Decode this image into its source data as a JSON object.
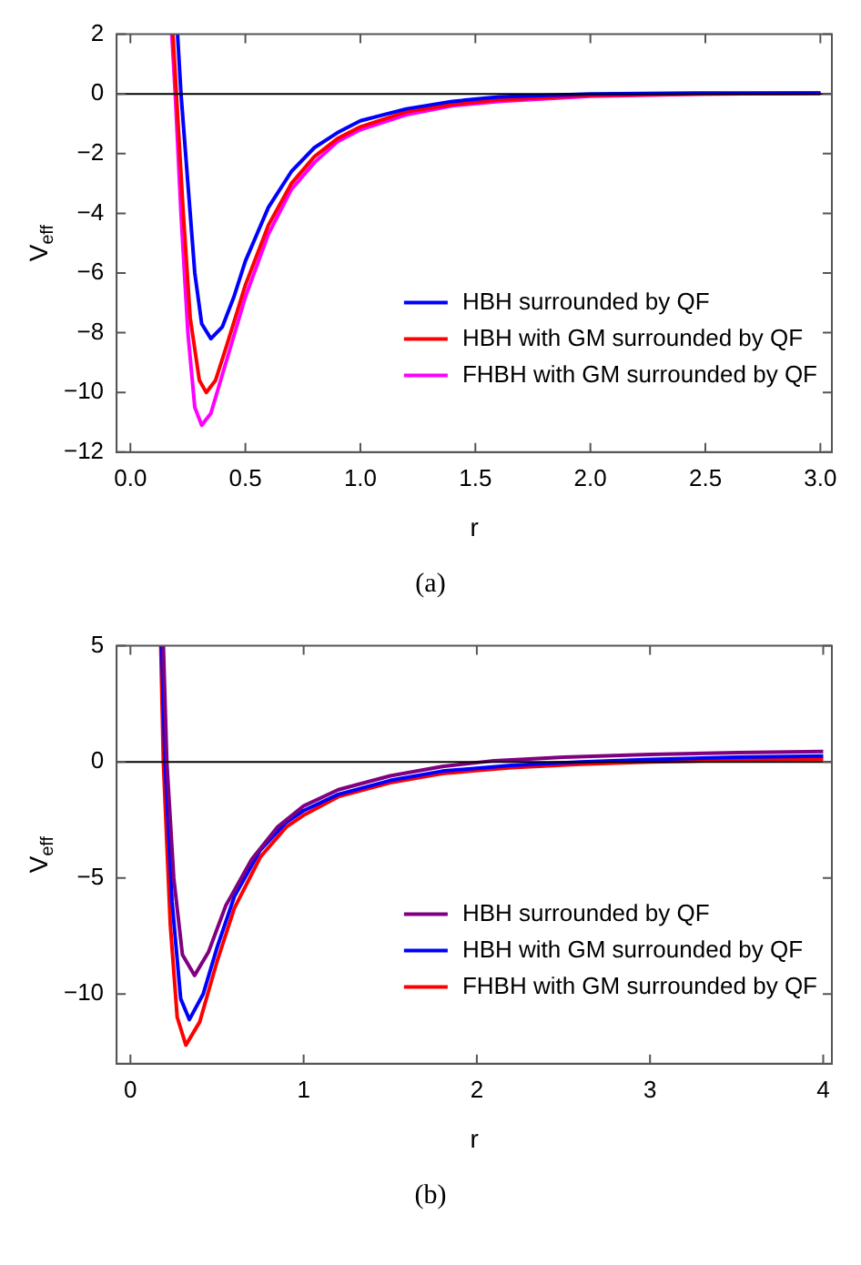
{
  "chart_data": [
    {
      "type": "line",
      "xlabel": "r",
      "ylabel": "V$_{eff}$",
      "xlim": [
        -0.06,
        3.05
      ],
      "ylim": [
        -12,
        2
      ],
      "xticks": [
        {
          "value": 0,
          "label": "0.0"
        },
        0.5,
        {
          "value": 1,
          "label": "1.0"
        },
        1.5,
        {
          "value": 2,
          "label": "2.0"
        },
        2.5,
        {
          "value": 3,
          "label": "3.0"
        }
      ],
      "yticks": [
        -12,
        -10,
        -8,
        -6,
        -4,
        -2,
        0,
        2
      ],
      "grid": false,
      "legend": "bottom right",
      "marker": "none",
      "line_style": "solid",
      "ref_lines": [
        {
          "axis": "y",
          "value": 0,
          "color": "#000000"
        }
      ],
      "annotations": [
        "(a)"
      ],
      "series": [
        {
          "name": "HBH surrounded by QF",
          "color": "#0000ff",
          "x": [
            0.205,
            0.22,
            0.25,
            0.28,
            0.31,
            0.35,
            0.4,
            0.45,
            0.5,
            0.6,
            0.7,
            0.8,
            0.9,
            1.0,
            1.2,
            1.4,
            1.6,
            2.0,
            2.5,
            3.0
          ],
          "values": [
            2,
            0,
            -3,
            -6,
            -7.7,
            -8.2,
            -7.8,
            -6.8,
            -5.6,
            -3.8,
            -2.6,
            -1.8,
            -1.3,
            -0.9,
            -0.5,
            -0.25,
            -0.1,
            0,
            0.03,
            0.03
          ]
        },
        {
          "name": "HBH with GM surrounded by QF",
          "color": "#ff0000",
          "x": [
            0.185,
            0.2,
            0.23,
            0.26,
            0.3,
            0.33,
            0.37,
            0.42,
            0.5,
            0.6,
            0.7,
            0.8,
            0.9,
            1.0,
            1.2,
            1.4,
            1.6,
            2.0,
            2.5,
            3.0
          ],
          "values": [
            2,
            0,
            -4,
            -7.5,
            -9.6,
            -10,
            -9.6,
            -8.4,
            -6.4,
            -4.4,
            -3.0,
            -2.1,
            -1.5,
            -1.1,
            -0.6,
            -0.35,
            -0.2,
            -0.05,
            0,
            0.02
          ]
        },
        {
          "name": "FHBH with GM surrounded by QF",
          "color": "#ff00ff",
          "x": [
            0.18,
            0.195,
            0.22,
            0.25,
            0.28,
            0.31,
            0.35,
            0.4,
            0.5,
            0.6,
            0.7,
            0.8,
            0.9,
            1.0,
            1.2,
            1.4,
            1.6,
            2.0,
            2.5,
            3.0
          ],
          "values": [
            2,
            0,
            -4,
            -8,
            -10.5,
            -11.1,
            -10.7,
            -9.4,
            -6.8,
            -4.7,
            -3.2,
            -2.3,
            -1.6,
            -1.2,
            -0.7,
            -0.4,
            -0.25,
            -0.08,
            0,
            0.02
          ]
        }
      ]
    },
    {
      "type": "line",
      "xlabel": "r",
      "ylabel": "V$_{eff}$",
      "xlim": [
        -0.08,
        4.05
      ],
      "ylim": [
        -13,
        5
      ],
      "xticks": [
        0,
        1,
        2,
        3,
        4
      ],
      "yticks": [
        -10,
        -5,
        0,
        5
      ],
      "grid": false,
      "legend": "bottom right",
      "marker": "none",
      "line_style": "solid",
      "ref_lines": [
        {
          "axis": "y",
          "value": 0,
          "color": "#000000"
        }
      ],
      "annotations": [
        "(b)"
      ],
      "series": [
        {
          "name": "HBH surrounded by QF",
          "color": "#800080",
          "x": [
            0.19,
            0.21,
            0.25,
            0.3,
            0.37,
            0.45,
            0.55,
            0.7,
            0.85,
            1.0,
            1.2,
            1.5,
            1.8,
            2.1,
            2.5,
            3.0,
            3.5,
            4.0
          ],
          "values": [
            5,
            0,
            -5,
            -8.3,
            -9.2,
            -8.2,
            -6.2,
            -4.2,
            -2.8,
            -1.9,
            -1.2,
            -0.6,
            -0.2,
            0.05,
            0.2,
            0.32,
            0.4,
            0.45
          ]
        },
        {
          "name": "HBH with GM surrounded by QF",
          "color": "#0000ff",
          "x": [
            0.18,
            0.2,
            0.24,
            0.29,
            0.34,
            0.42,
            0.5,
            0.6,
            0.75,
            0.9,
            1.0,
            1.2,
            1.5,
            1.8,
            2.2,
            2.6,
            3.0,
            3.5,
            4.0
          ],
          "values": [
            5,
            0,
            -6,
            -10.2,
            -11.1,
            -10,
            -8,
            -5.8,
            -3.8,
            -2.6,
            -2.1,
            -1.4,
            -0.8,
            -0.4,
            -0.15,
            0,
            0.1,
            0.2,
            0.25
          ]
        },
        {
          "name": "FHBH with GM surrounded by QF",
          "color": "#ff0000",
          "x": [
            0.175,
            0.19,
            0.23,
            0.27,
            0.32,
            0.4,
            0.5,
            0.6,
            0.75,
            0.9,
            1.0,
            1.2,
            1.5,
            1.8,
            2.2,
            2.6,
            3.0,
            3.5,
            4.0
          ],
          "values": [
            5,
            0,
            -7,
            -11,
            -12.2,
            -11.2,
            -8.6,
            -6.3,
            -4.1,
            -2.8,
            -2.3,
            -1.5,
            -0.9,
            -0.5,
            -0.25,
            -0.1,
            0,
            0.07,
            0.12
          ]
        }
      ]
    }
  ]
}
